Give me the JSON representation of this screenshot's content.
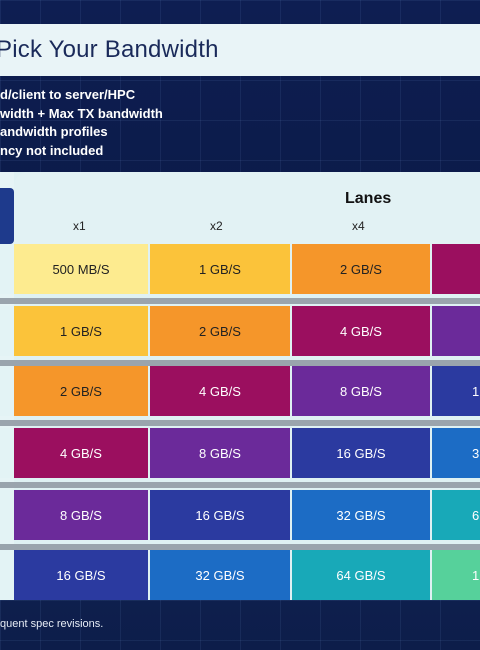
{
  "title": "Pick Your Bandwidth",
  "bullets": [
    "d/client to server/HPC",
    "width + Max TX bandwidth",
    "andwidth profiles",
    "ncy not included"
  ],
  "lanes_title": "Lanes",
  "columns": [
    "x1",
    "x2",
    "x4"
  ],
  "rows": [
    [
      "500 MB/S",
      "1 GB/S",
      "2 GB/S",
      ""
    ],
    [
      "1 GB/S",
      "2 GB/S",
      "4 GB/S",
      ""
    ],
    [
      "2 GB/S",
      "4 GB/S",
      "8 GB/S",
      "1"
    ],
    [
      "4 GB/S",
      "8 GB/S",
      "16 GB/S",
      "3"
    ],
    [
      "8 GB/S",
      "16 GB/S",
      "32 GB/S",
      "6"
    ],
    [
      "16 GB/S",
      "32 GB/S",
      "64 GB/S",
      "1"
    ]
  ],
  "row_colors": [
    [
      "#fdeb8f",
      "#fbc33a",
      "#f5962a",
      "#9b0f5f"
    ],
    [
      "#fbc33a",
      "#f5962a",
      "#9b0f5f",
      "#6b2a9a"
    ],
    [
      "#f5962a",
      "#9b0f5f",
      "#6b2a9a",
      "#2b3aa0"
    ],
    [
      "#9b0f5f",
      "#6b2a9a",
      "#2b3aa0",
      "#1c6cc5"
    ],
    [
      "#6b2a9a",
      "#2b3aa0",
      "#1c6cc5",
      "#18a9b8"
    ],
    [
      "#2b3aa0",
      "#1c6cc5",
      "#18a9b8",
      "#56d19b"
    ]
  ],
  "text_colors": [
    [
      "#222222",
      "#222222",
      "#222222",
      "#ffffff"
    ],
    [
      "#222222",
      "#222222",
      "#ffffff",
      "#ffffff"
    ],
    [
      "#222222",
      "#ffffff",
      "#ffffff",
      "#ffffff"
    ],
    [
      "#ffffff",
      "#ffffff",
      "#ffffff",
      "#ffffff"
    ],
    [
      "#ffffff",
      "#ffffff",
      "#ffffff",
      "#ffffff"
    ],
    [
      "#ffffff",
      "#ffffff",
      "#ffffff",
      "#ffffff"
    ]
  ],
  "footnote": "quent spec revisions."
}
